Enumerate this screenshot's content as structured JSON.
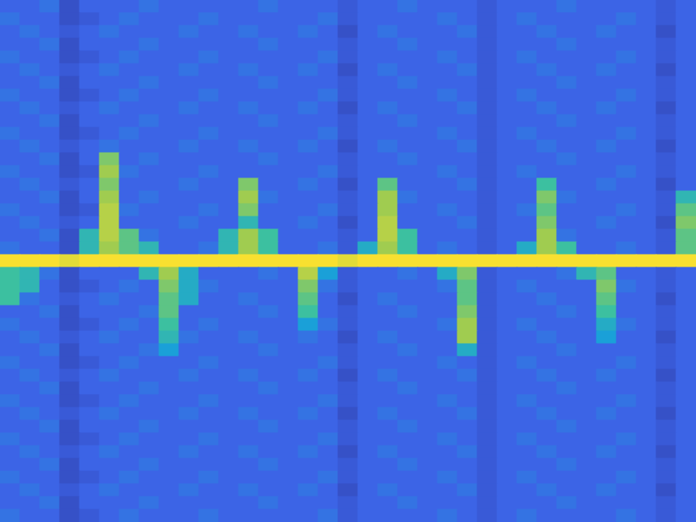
{
  "chart_data": {
    "type": "heatmap",
    "tick_labels": false,
    "color_range": [
      0,
      1
    ],
    "cells": [
      [
        0.3,
        0.3,
        0.35,
        0.2,
        0.3,
        0.3,
        0.3,
        0.35,
        0.3,
        0.3,
        0.3,
        0.3,
        0.3,
        0.35,
        0.3,
        0.3,
        0.3,
        0.25,
        0.3,
        0.3,
        0.35,
        0.3,
        0.3,
        0.3,
        0.25,
        0.3,
        0.3,
        0.3,
        0.35,
        0.3,
        0.3,
        0.3,
        0.3,
        0.25,
        0.3
      ],
      [
        0.35,
        0.3,
        0.3,
        0.2,
        0.25,
        0.3,
        0.35,
        0.3,
        0.3,
        0.3,
        0.35,
        0.3,
        0.3,
        0.3,
        0.3,
        0.3,
        0.35,
        0.25,
        0.3,
        0.3,
        0.3,
        0.3,
        0.35,
        0.3,
        0.25,
        0.3,
        0.35,
        0.3,
        0.3,
        0.3,
        0.3,
        0.35,
        0.3,
        0.25,
        0.3
      ],
      [
        0.3,
        0.35,
        0.3,
        0.25,
        0.3,
        0.35,
        0.3,
        0.3,
        0.3,
        0.35,
        0.3,
        0.3,
        0.35,
        0.3,
        0.3,
        0.35,
        0.3,
        0.2,
        0.3,
        0.35,
        0.3,
        0.3,
        0.3,
        0.35,
        0.25,
        0.3,
        0.3,
        0.35,
        0.3,
        0.3,
        0.35,
        0.3,
        0.3,
        0.2,
        0.3
      ],
      [
        0.3,
        0.3,
        0.35,
        0.2,
        0.3,
        0.3,
        0.3,
        0.35,
        0.3,
        0.3,
        0.3,
        0.3,
        0.3,
        0.35,
        0.3,
        0.3,
        0.3,
        0.25,
        0.3,
        0.3,
        0.35,
        0.3,
        0.3,
        0.3,
        0.25,
        0.3,
        0.3,
        0.3,
        0.35,
        0.3,
        0.3,
        0.3,
        0.3,
        0.25,
        0.3
      ],
      [
        0.35,
        0.3,
        0.3,
        0.2,
        0.25,
        0.3,
        0.35,
        0.3,
        0.3,
        0.3,
        0.35,
        0.3,
        0.3,
        0.3,
        0.3,
        0.3,
        0.35,
        0.25,
        0.3,
        0.3,
        0.3,
        0.3,
        0.35,
        0.3,
        0.25,
        0.3,
        0.35,
        0.3,
        0.3,
        0.3,
        0.3,
        0.35,
        0.3,
        0.25,
        0.3
      ],
      [
        0.3,
        0.35,
        0.3,
        0.25,
        0.3,
        0.35,
        0.3,
        0.3,
        0.3,
        0.35,
        0.3,
        0.3,
        0.35,
        0.3,
        0.3,
        0.35,
        0.3,
        0.2,
        0.3,
        0.35,
        0.3,
        0.3,
        0.3,
        0.35,
        0.25,
        0.3,
        0.3,
        0.35,
        0.3,
        0.3,
        0.35,
        0.3,
        0.3,
        0.2,
        0.3
      ],
      [
        0.3,
        0.3,
        0.35,
        0.2,
        0.3,
        0.3,
        0.3,
        0.35,
        0.3,
        0.3,
        0.3,
        0.3,
        0.3,
        0.35,
        0.3,
        0.3,
        0.3,
        0.25,
        0.3,
        0.3,
        0.35,
        0.3,
        0.3,
        0.3,
        0.25,
        0.3,
        0.3,
        0.3,
        0.35,
        0.3,
        0.3,
        0.3,
        0.3,
        0.25,
        0.3
      ],
      [
        0.35,
        0.3,
        0.3,
        0.2,
        0.25,
        0.3,
        0.35,
        0.3,
        0.3,
        0.3,
        0.35,
        0.3,
        0.3,
        0.3,
        0.3,
        0.3,
        0.35,
        0.25,
        0.3,
        0.3,
        0.3,
        0.3,
        0.35,
        0.3,
        0.25,
        0.3,
        0.35,
        0.3,
        0.3,
        0.3,
        0.3,
        0.35,
        0.3,
        0.25,
        0.3
      ],
      [
        0.3,
        0.35,
        0.3,
        0.25,
        0.3,
        0.35,
        0.3,
        0.3,
        0.3,
        0.35,
        0.3,
        0.3,
        0.35,
        0.3,
        0.3,
        0.35,
        0.3,
        0.2,
        0.3,
        0.35,
        0.3,
        0.3,
        0.3,
        0.35,
        0.25,
        0.3,
        0.3,
        0.35,
        0.3,
        0.3,
        0.35,
        0.3,
        0.3,
        0.2,
        0.3
      ],
      [
        0.3,
        0.3,
        0.35,
        0.2,
        0.3,
        0.3,
        0.3,
        0.35,
        0.3,
        0.3,
        0.3,
        0.3,
        0.3,
        0.35,
        0.3,
        0.3,
        0.3,
        0.25,
        0.3,
        0.3,
        0.35,
        0.3,
        0.3,
        0.3,
        0.25,
        0.3,
        0.3,
        0.3,
        0.35,
        0.3,
        0.3,
        0.3,
        0.3,
        0.25,
        0.3
      ],
      [
        0.35,
        0.3,
        0.3,
        0.2,
        0.25,
        0.3,
        0.35,
        0.3,
        0.3,
        0.3,
        0.35,
        0.3,
        0.3,
        0.3,
        0.3,
        0.3,
        0.35,
        0.25,
        0.3,
        0.3,
        0.3,
        0.3,
        0.35,
        0.3,
        0.25,
        0.3,
        0.35,
        0.3,
        0.3,
        0.3,
        0.3,
        0.35,
        0.3,
        0.25,
        0.3
      ],
      [
        0.3,
        0.35,
        0.3,
        0.25,
        0.3,
        0.35,
        0.3,
        0.3,
        0.3,
        0.35,
        0.3,
        0.3,
        0.35,
        0.3,
        0.3,
        0.35,
        0.3,
        0.2,
        0.3,
        0.35,
        0.3,
        0.3,
        0.3,
        0.35,
        0.25,
        0.3,
        0.3,
        0.35,
        0.3,
        0.3,
        0.35,
        0.3,
        0.3,
        0.2,
        0.3
      ],
      [
        0.3,
        0.3,
        0.35,
        0.2,
        0.3,
        0.75,
        0.3,
        0.35,
        0.3,
        0.3,
        0.3,
        0.3,
        0.3,
        0.35,
        0.3,
        0.3,
        0.3,
        0.25,
        0.3,
        0.3,
        0.35,
        0.3,
        0.3,
        0.3,
        0.25,
        0.3,
        0.3,
        0.3,
        0.35,
        0.3,
        0.3,
        0.3,
        0.3,
        0.25,
        0.3
      ],
      [
        0.35,
        0.3,
        0.3,
        0.2,
        0.25,
        0.8,
        0.35,
        0.3,
        0.3,
        0.3,
        0.35,
        0.3,
        0.3,
        0.3,
        0.3,
        0.3,
        0.35,
        0.25,
        0.3,
        0.3,
        0.3,
        0.3,
        0.35,
        0.3,
        0.25,
        0.3,
        0.35,
        0.3,
        0.3,
        0.3,
        0.3,
        0.35,
        0.3,
        0.25,
        0.3
      ],
      [
        0.3,
        0.35,
        0.3,
        0.25,
        0.3,
        0.75,
        0.3,
        0.3,
        0.3,
        0.35,
        0.3,
        0.3,
        0.75,
        0.3,
        0.3,
        0.35,
        0.3,
        0.2,
        0.3,
        0.7,
        0.3,
        0.3,
        0.3,
        0.35,
        0.25,
        0.3,
        0.3,
        0.65,
        0.3,
        0.3,
        0.35,
        0.3,
        0.3,
        0.2,
        0.3
      ],
      [
        0.3,
        0.3,
        0.35,
        0.2,
        0.3,
        0.8,
        0.3,
        0.35,
        0.3,
        0.3,
        0.3,
        0.3,
        0.8,
        0.35,
        0.3,
        0.3,
        0.3,
        0.25,
        0.3,
        0.8,
        0.35,
        0.3,
        0.3,
        0.3,
        0.25,
        0.3,
        0.3,
        0.75,
        0.35,
        0.3,
        0.3,
        0.3,
        0.3,
        0.25,
        0.6
      ],
      [
        0.35,
        0.3,
        0.3,
        0.2,
        0.25,
        0.85,
        0.35,
        0.3,
        0.3,
        0.3,
        0.35,
        0.3,
        0.75,
        0.3,
        0.3,
        0.3,
        0.35,
        0.25,
        0.3,
        0.8,
        0.3,
        0.3,
        0.35,
        0.3,
        0.25,
        0.3,
        0.35,
        0.7,
        0.3,
        0.3,
        0.3,
        0.35,
        0.3,
        0.25,
        0.7
      ],
      [
        0.3,
        0.35,
        0.3,
        0.25,
        0.3,
        0.85,
        0.3,
        0.3,
        0.3,
        0.35,
        0.3,
        0.3,
        0.6,
        0.3,
        0.3,
        0.35,
        0.3,
        0.2,
        0.3,
        0.85,
        0.3,
        0.3,
        0.3,
        0.35,
        0.25,
        0.3,
        0.3,
        0.75,
        0.3,
        0.3,
        0.35,
        0.3,
        0.3,
        0.2,
        0.75
      ],
      [
        0.3,
        0.3,
        0.35,
        0.2,
        0.6,
        0.85,
        0.7,
        0.35,
        0.3,
        0.3,
        0.3,
        0.6,
        0.8,
        0.65,
        0.3,
        0.3,
        0.3,
        0.25,
        0.3,
        0.85,
        0.65,
        0.3,
        0.3,
        0.3,
        0.25,
        0.3,
        0.3,
        0.8,
        0.35,
        0.3,
        0.3,
        0.3,
        0.3,
        0.25,
        0.7
      ],
      [
        0.35,
        0.3,
        0.3,
        0.2,
        0.6,
        0.8,
        0.7,
        0.6,
        0.3,
        0.3,
        0.35,
        0.6,
        0.8,
        0.65,
        0.3,
        0.3,
        0.35,
        0.25,
        0.55,
        0.8,
        0.65,
        0.3,
        0.35,
        0.3,
        0.25,
        0.3,
        0.55,
        0.8,
        0.65,
        0.3,
        0.3,
        0.35,
        0.3,
        0.25,
        0.7
      ],
      [
        1,
        1,
        1,
        0.95,
        1,
        1,
        1,
        1,
        1,
        1,
        1,
        1,
        1,
        1,
        1,
        1,
        1,
        0.95,
        1,
        1,
        1,
        1,
        1,
        1,
        1,
        1,
        1,
        1,
        1,
        1,
        1,
        1,
        1,
        1,
        1
      ],
      [
        0.65,
        0.6,
        0.35,
        0.2,
        0.3,
        0.3,
        0.3,
        0.6,
        0.8,
        0.55,
        0.3,
        0.3,
        0.3,
        0.35,
        0.3,
        0.85,
        0.5,
        0.25,
        0.3,
        0.3,
        0.35,
        0.3,
        0.55,
        0.75,
        0.25,
        0.3,
        0.3,
        0.3,
        0.35,
        0.6,
        0.7,
        0.3,
        0.3,
        0.25,
        0.3
      ],
      [
        0.65,
        0.6,
        0.3,
        0.2,
        0.25,
        0.3,
        0.35,
        0.3,
        0.75,
        0.55,
        0.35,
        0.3,
        0.3,
        0.3,
        0.3,
        0.75,
        0.35,
        0.25,
        0.3,
        0.3,
        0.3,
        0.3,
        0.35,
        0.7,
        0.25,
        0.3,
        0.35,
        0.3,
        0.3,
        0.3,
        0.75,
        0.35,
        0.3,
        0.25,
        0.3
      ],
      [
        0.65,
        0.35,
        0.3,
        0.25,
        0.3,
        0.35,
        0.3,
        0.3,
        0.7,
        0.55,
        0.3,
        0.3,
        0.35,
        0.3,
        0.3,
        0.7,
        0.3,
        0.2,
        0.3,
        0.35,
        0.3,
        0.3,
        0.3,
        0.7,
        0.25,
        0.3,
        0.3,
        0.35,
        0.3,
        0.3,
        0.7,
        0.3,
        0.3,
        0.2,
        0.3
      ],
      [
        0.3,
        0.3,
        0.35,
        0.2,
        0.3,
        0.3,
        0.3,
        0.35,
        0.7,
        0.3,
        0.3,
        0.3,
        0.3,
        0.35,
        0.3,
        0.65,
        0.3,
        0.25,
        0.3,
        0.3,
        0.35,
        0.3,
        0.3,
        0.75,
        0.25,
        0.3,
        0.3,
        0.3,
        0.35,
        0.3,
        0.65,
        0.3,
        0.3,
        0.25,
        0.3
      ],
      [
        0.35,
        0.3,
        0.3,
        0.2,
        0.25,
        0.3,
        0.35,
        0.3,
        0.65,
        0.3,
        0.35,
        0.3,
        0.3,
        0.3,
        0.3,
        0.5,
        0.35,
        0.25,
        0.3,
        0.3,
        0.3,
        0.3,
        0.35,
        0.8,
        0.25,
        0.3,
        0.35,
        0.3,
        0.3,
        0.3,
        0.55,
        0.35,
        0.3,
        0.25,
        0.3
      ],
      [
        0.3,
        0.35,
        0.3,
        0.25,
        0.3,
        0.35,
        0.3,
        0.3,
        0.6,
        0.35,
        0.3,
        0.3,
        0.35,
        0.3,
        0.3,
        0.35,
        0.3,
        0.2,
        0.3,
        0.35,
        0.3,
        0.3,
        0.3,
        0.8,
        0.25,
        0.3,
        0.3,
        0.35,
        0.3,
        0.3,
        0.5,
        0.3,
        0.3,
        0.2,
        0.3
      ],
      [
        0.3,
        0.3,
        0.35,
        0.2,
        0.3,
        0.3,
        0.3,
        0.35,
        0.5,
        0.3,
        0.3,
        0.3,
        0.3,
        0.35,
        0.3,
        0.3,
        0.3,
        0.25,
        0.3,
        0.3,
        0.35,
        0.3,
        0.3,
        0.55,
        0.25,
        0.3,
        0.3,
        0.3,
        0.35,
        0.3,
        0.3,
        0.3,
        0.3,
        0.25,
        0.3
      ],
      [
        0.35,
        0.3,
        0.3,
        0.2,
        0.25,
        0.3,
        0.35,
        0.3,
        0.3,
        0.3,
        0.35,
        0.3,
        0.3,
        0.3,
        0.3,
        0.3,
        0.35,
        0.25,
        0.3,
        0.3,
        0.3,
        0.3,
        0.35,
        0.3,
        0.25,
        0.3,
        0.35,
        0.3,
        0.3,
        0.3,
        0.3,
        0.35,
        0.3,
        0.25,
        0.3
      ],
      [
        0.3,
        0.35,
        0.3,
        0.25,
        0.3,
        0.35,
        0.3,
        0.3,
        0.3,
        0.35,
        0.3,
        0.3,
        0.35,
        0.3,
        0.3,
        0.35,
        0.3,
        0.2,
        0.3,
        0.35,
        0.3,
        0.3,
        0.3,
        0.35,
        0.25,
        0.3,
        0.3,
        0.35,
        0.3,
        0.3,
        0.35,
        0.3,
        0.3,
        0.2,
        0.3
      ],
      [
        0.3,
        0.3,
        0.35,
        0.2,
        0.3,
        0.3,
        0.3,
        0.35,
        0.3,
        0.3,
        0.3,
        0.3,
        0.3,
        0.35,
        0.3,
        0.3,
        0.3,
        0.25,
        0.3,
        0.3,
        0.35,
        0.3,
        0.3,
        0.3,
        0.25,
        0.3,
        0.3,
        0.3,
        0.35,
        0.3,
        0.3,
        0.3,
        0.3,
        0.25,
        0.3
      ],
      [
        0.35,
        0.3,
        0.3,
        0.2,
        0.25,
        0.3,
        0.35,
        0.3,
        0.3,
        0.3,
        0.35,
        0.3,
        0.3,
        0.3,
        0.3,
        0.3,
        0.35,
        0.25,
        0.3,
        0.3,
        0.3,
        0.3,
        0.35,
        0.3,
        0.25,
        0.3,
        0.35,
        0.3,
        0.3,
        0.3,
        0.3,
        0.35,
        0.3,
        0.25,
        0.3
      ],
      [
        0.3,
        0.35,
        0.3,
        0.25,
        0.3,
        0.35,
        0.3,
        0.3,
        0.3,
        0.35,
        0.3,
        0.3,
        0.35,
        0.3,
        0.3,
        0.35,
        0.3,
        0.2,
        0.3,
        0.35,
        0.3,
        0.3,
        0.3,
        0.35,
        0.25,
        0.3,
        0.3,
        0.35,
        0.3,
        0.3,
        0.35,
        0.3,
        0.3,
        0.2,
        0.3
      ],
      [
        0.3,
        0.3,
        0.35,
        0.2,
        0.3,
        0.3,
        0.3,
        0.35,
        0.3,
        0.3,
        0.3,
        0.3,
        0.3,
        0.35,
        0.3,
        0.3,
        0.3,
        0.25,
        0.3,
        0.3,
        0.35,
        0.3,
        0.3,
        0.3,
        0.25,
        0.3,
        0.3,
        0.3,
        0.35,
        0.3,
        0.3,
        0.3,
        0.3,
        0.25,
        0.3
      ],
      [
        0.35,
        0.3,
        0.3,
        0.2,
        0.25,
        0.3,
        0.35,
        0.3,
        0.3,
        0.3,
        0.35,
        0.3,
        0.3,
        0.3,
        0.3,
        0.3,
        0.35,
        0.25,
        0.3,
        0.3,
        0.3,
        0.3,
        0.35,
        0.3,
        0.25,
        0.3,
        0.35,
        0.3,
        0.3,
        0.3,
        0.3,
        0.35,
        0.3,
        0.25,
        0.3
      ],
      [
        0.3,
        0.35,
        0.3,
        0.25,
        0.3,
        0.35,
        0.3,
        0.3,
        0.3,
        0.35,
        0.3,
        0.3,
        0.35,
        0.3,
        0.3,
        0.35,
        0.3,
        0.2,
        0.3,
        0.35,
        0.3,
        0.3,
        0.3,
        0.35,
        0.25,
        0.3,
        0.3,
        0.35,
        0.3,
        0.3,
        0.35,
        0.3,
        0.3,
        0.2,
        0.3
      ],
      [
        0.3,
        0.3,
        0.35,
        0.2,
        0.3,
        0.3,
        0.3,
        0.35,
        0.3,
        0.3,
        0.3,
        0.3,
        0.3,
        0.35,
        0.3,
        0.3,
        0.3,
        0.25,
        0.3,
        0.3,
        0.35,
        0.3,
        0.3,
        0.3,
        0.25,
        0.3,
        0.3,
        0.3,
        0.35,
        0.3,
        0.3,
        0.3,
        0.3,
        0.25,
        0.3
      ],
      [
        0.35,
        0.3,
        0.3,
        0.2,
        0.25,
        0.3,
        0.35,
        0.3,
        0.3,
        0.3,
        0.35,
        0.3,
        0.3,
        0.3,
        0.3,
        0.3,
        0.35,
        0.25,
        0.3,
        0.3,
        0.3,
        0.3,
        0.35,
        0.3,
        0.25,
        0.3,
        0.35,
        0.3,
        0.3,
        0.3,
        0.3,
        0.35,
        0.3,
        0.25,
        0.3
      ],
      [
        0.3,
        0.35,
        0.3,
        0.25,
        0.3,
        0.35,
        0.3,
        0.3,
        0.3,
        0.35,
        0.3,
        0.3,
        0.35,
        0.3,
        0.3,
        0.35,
        0.3,
        0.2,
        0.3,
        0.35,
        0.3,
        0.3,
        0.3,
        0.35,
        0.25,
        0.3,
        0.3,
        0.35,
        0.3,
        0.3,
        0.35,
        0.3,
        0.3,
        0.2,
        0.3
      ],
      [
        0.3,
        0.3,
        0.35,
        0.2,
        0.3,
        0.3,
        0.3,
        0.35,
        0.3,
        0.3,
        0.3,
        0.3,
        0.3,
        0.35,
        0.3,
        0.3,
        0.3,
        0.25,
        0.3,
        0.3,
        0.35,
        0.3,
        0.3,
        0.3,
        0.25,
        0.3,
        0.3,
        0.3,
        0.35,
        0.3,
        0.3,
        0.3,
        0.3,
        0.25,
        0.3
      ],
      [
        0.35,
        0.3,
        0.3,
        0.2,
        0.25,
        0.3,
        0.35,
        0.3,
        0.3,
        0.3,
        0.35,
        0.3,
        0.3,
        0.3,
        0.3,
        0.3,
        0.35,
        0.25,
        0.3,
        0.3,
        0.3,
        0.3,
        0.35,
        0.3,
        0.25,
        0.3,
        0.35,
        0.3,
        0.3,
        0.3,
        0.3,
        0.35,
        0.3,
        0.25,
        0.3
      ]
    ]
  }
}
